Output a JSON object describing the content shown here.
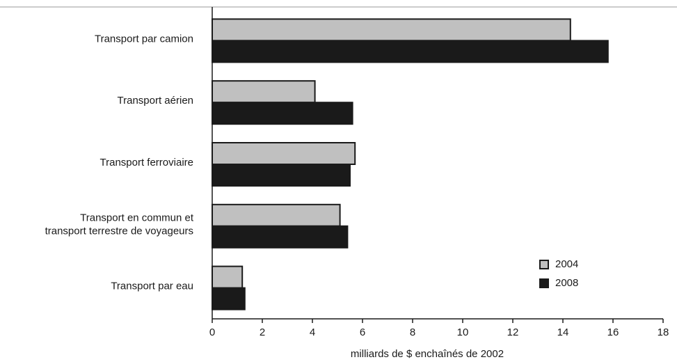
{
  "chart_data": {
    "type": "bar",
    "orientation": "horizontal",
    "x_label": "milliards de $ enchaînés de 2002",
    "categories": [
      "Transport par camion",
      "Transport aérien",
      "Transport ferroviaire",
      "Transport en commun et\ntransport terrestre de voyageurs",
      "Transport par eau"
    ],
    "series": [
      {
        "name": "2004",
        "color": "#c0c0c0",
        "values": [
          14.3,
          4.1,
          5.7,
          5.1,
          1.2
        ]
      },
      {
        "name": "2008",
        "color": "#1a1a1a",
        "values": [
          15.8,
          5.6,
          5.5,
          5.4,
          1.3
        ]
      }
    ],
    "xlim": [
      0,
      18
    ],
    "xticks": [
      0,
      2,
      4,
      6,
      8,
      10,
      12,
      14,
      16,
      18
    ],
    "legend": "lower right",
    "grid": false
  }
}
